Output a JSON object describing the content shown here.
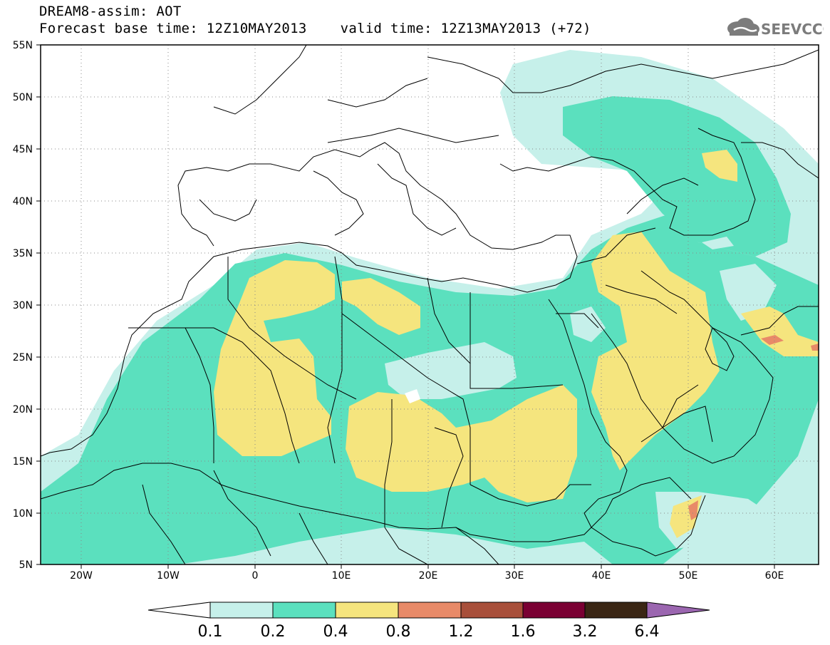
{
  "title": {
    "line1": "DREAM8-assim: AOT",
    "line2": "Forecast base time: 12Z10MAY2013    valid time: 12Z13MAY2013 (+72)"
  },
  "logo": {
    "text": "SEEVCCC",
    "icon": "cloud-logo-icon"
  },
  "map": {
    "lon_range": [
      -25,
      65
    ],
    "lat_range": [
      5,
      55
    ],
    "lat_labels": [
      "55N",
      "50N",
      "45N",
      "40N",
      "35N",
      "30N",
      "25N",
      "20N",
      "15N",
      "10N",
      "5N"
    ],
    "lon_labels": [
      "20W",
      "10W",
      "0",
      "10E",
      "20E",
      "30E",
      "40E",
      "50E",
      "60E"
    ],
    "grid": "dotted",
    "colors": {
      "c01": "#c6f0ea",
      "c02": "#5be0be",
      "c04": "#f5e57e",
      "c08": "#e88a68",
      "c12": "#a84f3a",
      "c16": "#7a0033",
      "c32": "#3a2614",
      "c64": "#9b66b0"
    }
  },
  "colorbar": {
    "levels": [
      "0.1",
      "0.2",
      "0.4",
      "0.8",
      "1.2",
      "1.6",
      "3.2",
      "6.4"
    ],
    "colors": [
      "#c6f0ea",
      "#5be0be",
      "#f5e57e",
      "#e88a68",
      "#a84f3a",
      "#7a0033",
      "#3a2614"
    ],
    "low_color": "#ffffff",
    "high_color": "#9b66b0"
  }
}
